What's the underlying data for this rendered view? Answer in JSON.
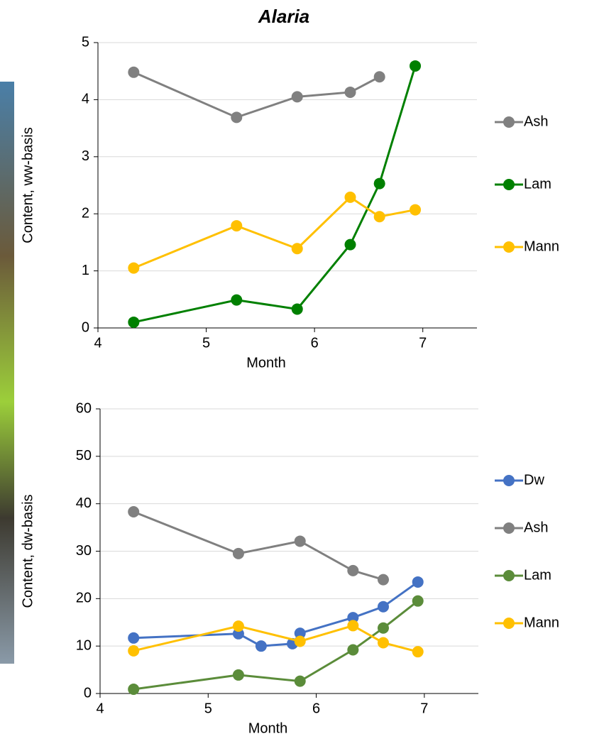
{
  "chart_data": [
    {
      "type": "line",
      "title": "Alaria",
      "x_label": "Month",
      "y_label": "Content, ww-basis",
      "xlim": [
        4,
        7.5
      ],
      "xticks": [
        4,
        5,
        6,
        7
      ],
      "ylim": [
        0,
        5
      ],
      "yticks": [
        0,
        1,
        2,
        3,
        4,
        5
      ],
      "grid": true,
      "series": [
        {
          "name": "Ash",
          "color": "#808080",
          "x": [
            4.33,
            5.28,
            5.84,
            6.33,
            6.6
          ],
          "values": [
            4.48,
            3.69,
            4.05,
            4.13,
            4.4
          ]
        },
        {
          "name": "Lam",
          "color": "#008000",
          "x": [
            4.33,
            5.28,
            5.84,
            6.33,
            6.6,
            6.93
          ],
          "values": [
            0.1,
            0.49,
            0.33,
            1.46,
            2.53,
            4.59
          ]
        },
        {
          "name": "Mann",
          "color": "#ffc000",
          "x": [
            4.33,
            5.28,
            5.84,
            6.33,
            6.6,
            6.93
          ],
          "values": [
            1.05,
            1.79,
            1.39,
            2.29,
            1.95,
            2.07
          ]
        }
      ]
    },
    {
      "type": "line",
      "x_label": "Month",
      "y_label": "Content, dw-basis",
      "xlim": [
        4,
        7.5
      ],
      "xticks": [
        4,
        5,
        6,
        7
      ],
      "ylim": [
        0,
        60
      ],
      "yticks": [
        0,
        10,
        20,
        30,
        40,
        50,
        60
      ],
      "grid": true,
      "series": [
        {
          "name": "Dw",
          "color": "#4472c4",
          "x": [
            4.31,
            5.28,
            5.49,
            5.78,
            5.85,
            6.34,
            6.62,
            6.94
          ],
          "values": [
            11.7,
            12.6,
            10.0,
            10.5,
            12.7,
            16.0,
            18.3,
            23.5
          ]
        },
        {
          "name": "Ash",
          "color": "#808080",
          "x": [
            4.31,
            5.28,
            5.85,
            6.34,
            6.62
          ],
          "values": [
            38.3,
            29.5,
            32.1,
            25.9,
            24.0
          ]
        },
        {
          "name": "Lam",
          "color": "#5b8c3a",
          "x": [
            4.31,
            5.28,
            5.85,
            6.34,
            6.62,
            6.94
          ],
          "values": [
            0.9,
            3.9,
            2.6,
            9.2,
            13.8,
            19.5
          ]
        },
        {
          "name": "Mann",
          "color": "#ffc000",
          "x": [
            4.31,
            5.28,
            5.85,
            6.34,
            6.62,
            6.94
          ],
          "values": [
            9.0,
            14.2,
            11.0,
            14.3,
            10.7,
            8.8
          ]
        }
      ]
    }
  ]
}
